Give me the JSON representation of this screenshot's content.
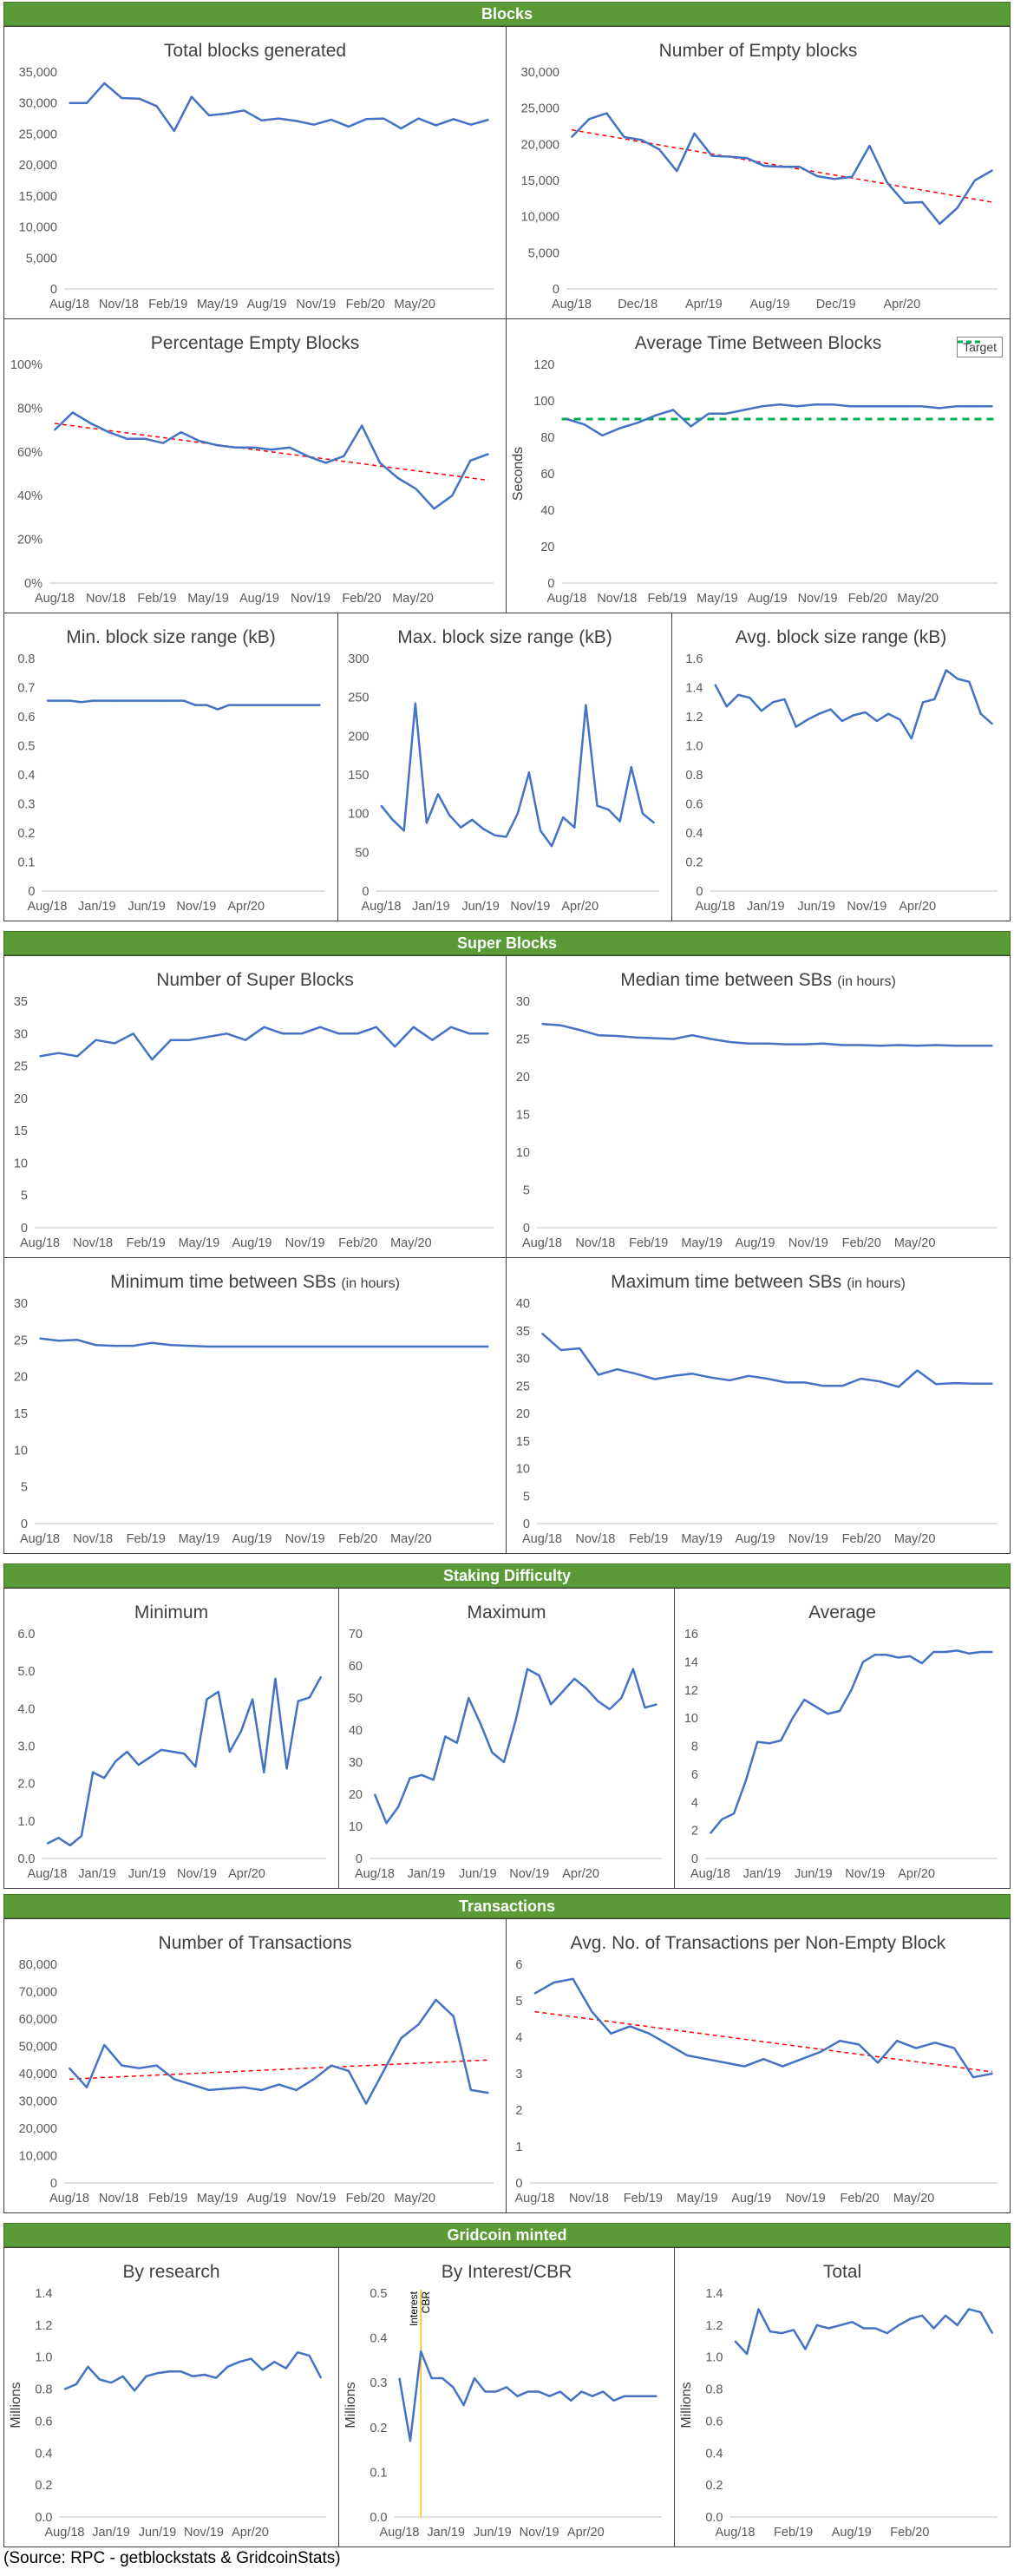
{
  "sections": {
    "blocks": "Blocks",
    "super_blocks": "Super Blocks",
    "staking": "Staking Difficulty",
    "transactions": "Transactions",
    "minted": "Gridcoin minted"
  },
  "source": "(Source: RPC - getblockstats & GridcoinStats)",
  "colors": {
    "line": "#4472c4",
    "trend": "#ff0000",
    "target": "#00b050",
    "marker": "#ffc000",
    "section": "#5b9b37"
  },
  "chart_data": [
    {
      "id": "total_blocks",
      "type": "line",
      "title": "Total blocks generated",
      "ylim": [
        0,
        35000
      ],
      "yticks": [
        "0",
        "5,000",
        "10,000",
        "15,000",
        "20,000",
        "25,000",
        "30,000",
        "35,000"
      ],
      "xticks": [
        "Aug/18",
        "Nov/18",
        "Feb/19",
        "May/19",
        "Aug/19",
        "Nov/19",
        "Feb/20",
        "May/20"
      ],
      "series": [
        {
          "name": "Total blocks",
          "values": [
            30000,
            30000,
            33200,
            30800,
            30700,
            29500,
            25500,
            31000,
            28000,
            28300,
            28800,
            27200,
            27500,
            27100,
            26500,
            27300,
            26200,
            27400,
            27500,
            25900,
            27500,
            26400,
            27400,
            26500,
            27300
          ]
        }
      ]
    },
    {
      "id": "empty_blocks",
      "type": "line",
      "title": "Number of Empty blocks",
      "ylim": [
        0,
        30000
      ],
      "yticks": [
        "0",
        "5,000",
        "10,000",
        "15,000",
        "20,000",
        "25,000",
        "30,000"
      ],
      "xticks": [
        "Aug/18",
        "Dec/18",
        "Apr/19",
        "Aug/19",
        "Dec/19",
        "Apr/20"
      ],
      "series": [
        {
          "name": "Empty blocks",
          "values": [
            21000,
            23500,
            24300,
            21000,
            20600,
            19300,
            16300,
            21500,
            18400,
            18300,
            18100,
            17000,
            16900,
            16900,
            15600,
            15200,
            15500,
            19800,
            14700,
            11900,
            12000,
            9000,
            11200,
            15000,
            16400
          ]
        }
      ],
      "trend": [
        22000,
        12000
      ]
    },
    {
      "id": "pct_empty",
      "type": "line",
      "title": "Percentage Empty Blocks",
      "ylim": [
        0,
        100
      ],
      "yticks": [
        "0%",
        "20%",
        "40%",
        "60%",
        "80%",
        "100%"
      ],
      "xticks": [
        "Aug/18",
        "Nov/18",
        "Feb/19",
        "May/19",
        "Aug/19",
        "Nov/19",
        "Feb/20",
        "May/20"
      ],
      "series": [
        {
          "name": "Percentage empty",
          "values": [
            70,
            78,
            73,
            69,
            66,
            66,
            64,
            69,
            65,
            63,
            62,
            62,
            61,
            62,
            58,
            55,
            58,
            72,
            55,
            48,
            43,
            34,
            40,
            56,
            59
          ]
        }
      ],
      "trend": [
        73,
        47
      ]
    },
    {
      "id": "avg_time",
      "type": "line",
      "title": "Average Time Between Blocks",
      "ylabel": "Seconds",
      "ylim": [
        0,
        120
      ],
      "yticks": [
        "0",
        "20",
        "40",
        "60",
        "80",
        "100",
        "120"
      ],
      "xticks": [
        "Aug/18",
        "Nov/18",
        "Feb/19",
        "May/19",
        "Aug/19",
        "Nov/19",
        "Feb/20",
        "May/20"
      ],
      "legend": "Target",
      "target": 90,
      "series": [
        {
          "name": "Average time",
          "values": [
            90,
            87,
            81,
            85,
            88,
            92,
            95,
            86,
            93,
            93,
            95,
            97,
            98,
            97,
            98,
            98,
            97,
            97,
            97,
            97,
            97,
            96,
            97,
            97,
            97
          ]
        }
      ]
    },
    {
      "id": "min_size",
      "type": "line",
      "title": "Min. block size range (kB)",
      "ylim": [
        0,
        0.8
      ],
      "yticks": [
        "0",
        "0.1",
        "0.2",
        "0.3",
        "0.4",
        "0.5",
        "0.6",
        "0.7",
        "0.8"
      ],
      "xticks": [
        "Aug/18",
        "Jan/19",
        "Jun/19",
        "Nov/19",
        "Apr/20"
      ],
      "series": [
        {
          "name": "Min size",
          "values": [
            0.655,
            0.655,
            0.655,
            0.65,
            0.655,
            0.655,
            0.655,
            0.655,
            0.655,
            0.655,
            0.655,
            0.655,
            0.655,
            0.64,
            0.64,
            0.625,
            0.64,
            0.64,
            0.64,
            0.64,
            0.64,
            0.64,
            0.64,
            0.64,
            0.64
          ]
        }
      ]
    },
    {
      "id": "max_size",
      "type": "line",
      "title": "Max. block size range (kB)",
      "ylim": [
        0,
        300
      ],
      "yticks": [
        "0",
        "50",
        "100",
        "150",
        "200",
        "250",
        "300"
      ],
      "xticks": [
        "Aug/18",
        "Jan/19",
        "Jun/19",
        "Nov/19",
        "Apr/20"
      ],
      "series": [
        {
          "name": "Max size",
          "values": [
            110,
            92,
            78,
            242,
            88,
            125,
            98,
            82,
            92,
            80,
            72,
            70,
            100,
            153,
            78,
            58,
            95,
            82,
            240,
            110,
            105,
            90,
            160,
            100,
            88
          ]
        }
      ]
    },
    {
      "id": "avg_size",
      "type": "line",
      "title": "Avg. block size range (kB)",
      "ylim": [
        0,
        1.6
      ],
      "yticks": [
        "0",
        "0.2",
        "0.4",
        "0.6",
        "0.8",
        "1.0",
        "1.2",
        "1.4",
        "1.6"
      ],
      "xticks": [
        "Aug/18",
        "Jan/19",
        "Jun/19",
        "Nov/19",
        "Apr/20"
      ],
      "series": [
        {
          "name": "Avg size",
          "values": [
            1.42,
            1.27,
            1.35,
            1.33,
            1.24,
            1.3,
            1.32,
            1.13,
            1.18,
            1.22,
            1.25,
            1.17,
            1.21,
            1.23,
            1.17,
            1.22,
            1.18,
            1.05,
            1.3,
            1.32,
            1.52,
            1.46,
            1.44,
            1.22,
            1.15
          ]
        }
      ]
    },
    {
      "id": "super_blocks",
      "type": "line",
      "title": "Number of Super Blocks",
      "ylim": [
        0,
        35
      ],
      "yticks": [
        "0",
        "5",
        "10",
        "15",
        "20",
        "25",
        "30",
        "35"
      ],
      "xticks": [
        "Aug/18",
        "Nov/18",
        "Feb/19",
        "May/19",
        "Aug/19",
        "Nov/19",
        "Feb/20",
        "May/20"
      ],
      "series": [
        {
          "name": "Super blocks",
          "values": [
            26.5,
            27,
            26.5,
            29,
            28.5,
            30,
            26,
            29,
            29,
            29.5,
            30,
            29,
            31,
            30,
            30,
            31,
            30,
            30,
            31,
            28,
            31,
            29,
            31,
            30,
            30
          ]
        }
      ]
    },
    {
      "id": "median_sb",
      "type": "line",
      "title": "Median time between SBs",
      "title_small": "(in hours)",
      "ylim": [
        0,
        30
      ],
      "yticks": [
        "0",
        "5",
        "10",
        "15",
        "20",
        "25",
        "30"
      ],
      "xticks": [
        "Aug/18",
        "Nov/18",
        "Feb/19",
        "May/19",
        "Aug/19",
        "Nov/19",
        "Feb/20",
        "May/20"
      ],
      "series": [
        {
          "name": "Median time",
          "values": [
            27,
            26.8,
            26.2,
            25.5,
            25.4,
            25.2,
            25.1,
            25,
            25.5,
            25,
            24.6,
            24.4,
            24.4,
            24.3,
            24.3,
            24.4,
            24.2,
            24.2,
            24.1,
            24.2,
            24.1,
            24.2,
            24.1,
            24.1,
            24.1
          ]
        }
      ]
    },
    {
      "id": "min_sb",
      "type": "line",
      "title": "Minimum time between SBs",
      "title_small": "(in hours)",
      "ylim": [
        0,
        30
      ],
      "yticks": [
        "0",
        "5",
        "10",
        "15",
        "20",
        "25",
        "30"
      ],
      "xticks": [
        "Aug/18",
        "Nov/18",
        "Feb/19",
        "May/19",
        "Aug/19",
        "Nov/19",
        "Feb/20",
        "May/20"
      ],
      "series": [
        {
          "name": "Minimum time",
          "values": [
            25.2,
            24.9,
            25,
            24.3,
            24.2,
            24.2,
            24.6,
            24.3,
            24.2,
            24.1,
            24.1,
            24.1,
            24.1,
            24.1,
            24.1,
            24.1,
            24.1,
            24.1,
            24.1,
            24.1,
            24.1,
            24.1,
            24.1,
            24.1,
            24.1
          ]
        }
      ]
    },
    {
      "id": "max_sb",
      "type": "line",
      "title": "Maximum time  between SBs",
      "title_small": "(in hours)",
      "ylim": [
        0,
        40
      ],
      "yticks": [
        "0",
        "5",
        "10",
        "15",
        "20",
        "25",
        "30",
        "35",
        "40"
      ],
      "xticks": [
        "Aug/18",
        "Nov/18",
        "Feb/19",
        "May/19",
        "Aug/19",
        "Nov/19",
        "Feb/20",
        "May/20"
      ],
      "series": [
        {
          "name": "Maximum time",
          "values": [
            34.5,
            31.5,
            31.8,
            27,
            28,
            27.2,
            26.2,
            26.8,
            27.2,
            26.5,
            26,
            26.8,
            26.3,
            25.6,
            25.6,
            25,
            25,
            26.3,
            25.8,
            24.8,
            27.8,
            25.3,
            25.5,
            25.4,
            25.4
          ]
        }
      ]
    },
    {
      "id": "diff_min",
      "type": "line",
      "title": "Minimum",
      "ylim": [
        0,
        6
      ],
      "yticks": [
        "0.0",
        "1.0",
        "2.0",
        "3.0",
        "4.0",
        "5.0",
        "6.0"
      ],
      "xticks": [
        "Aug/18",
        "Jan/19",
        "Jun/19",
        "Nov/19",
        "Apr/20"
      ],
      "series": [
        {
          "name": "Minimum difficulty",
          "values": [
            0.4,
            0.55,
            0.35,
            0.6,
            2.3,
            2.15,
            2.6,
            2.85,
            2.5,
            2.7,
            2.9,
            2.85,
            2.8,
            2.45,
            4.25,
            4.45,
            2.85,
            3.4,
            4.25,
            2.3,
            4.8,
            2.4,
            4.2,
            4.3,
            4.85
          ]
        }
      ]
    },
    {
      "id": "diff_max",
      "type": "line",
      "title": "Maximum",
      "ylim": [
        0,
        70
      ],
      "yticks": [
        "0",
        "10",
        "20",
        "30",
        "40",
        "50",
        "60",
        "70"
      ],
      "xticks": [
        "Aug/18",
        "Jan/19",
        "Jun/19",
        "Nov/19",
        "Apr/20"
      ],
      "series": [
        {
          "name": "Maximum difficulty",
          "values": [
            20,
            11,
            16,
            25,
            26,
            24.5,
            38,
            36,
            50,
            42,
            33,
            30,
            43,
            59,
            57,
            48,
            52,
            56,
            53,
            49,
            46.5,
            50,
            59,
            47,
            48
          ]
        }
      ]
    },
    {
      "id": "diff_avg",
      "type": "line",
      "title": "Average",
      "ylim": [
        0,
        16
      ],
      "yticks": [
        "0",
        "2",
        "4",
        "6",
        "8",
        "10",
        "12",
        "14",
        "16"
      ],
      "xticks": [
        "Aug/18",
        "Jan/19",
        "Jun/19",
        "Nov/19",
        "Apr/20"
      ],
      "series": [
        {
          "name": "Average difficulty",
          "values": [
            1.8,
            2.8,
            3.2,
            5.5,
            8.3,
            8.2,
            8.4,
            10,
            11.3,
            10.8,
            10.3,
            10.5,
            12,
            14,
            14.5,
            14.5,
            14.3,
            14.4,
            13.9,
            14.7,
            14.7,
            14.8,
            14.6,
            14.7,
            14.7
          ]
        }
      ]
    },
    {
      "id": "num_tx",
      "type": "line",
      "title": "Number of Transactions",
      "ylim": [
        0,
        80000
      ],
      "yticks": [
        "0",
        "10,000",
        "20,000",
        "30,000",
        "40,000",
        "50,000",
        "60,000",
        "70,000",
        "80,000"
      ],
      "xticks": [
        "Aug/18",
        "Nov/18",
        "Feb/19",
        "May/19",
        "Aug/19",
        "Nov/19",
        "Feb/20",
        "May/20"
      ],
      "series": [
        {
          "name": "Transactions",
          "values": [
            42000,
            35000,
            50500,
            43000,
            42000,
            43000,
            38000,
            36000,
            34000,
            34500,
            35000,
            34000,
            36000,
            34000,
            38000,
            43000,
            41000,
            29000,
            41000,
            53000,
            58000,
            67000,
            61000,
            34000,
            33000
          ]
        }
      ],
      "trend": [
        38000,
        45000
      ]
    },
    {
      "id": "tx_per_block",
      "type": "line",
      "title": "Avg. No. of Transactions per Non-Empty Block",
      "ylim": [
        0,
        6
      ],
      "yticks": [
        "0",
        "1",
        "2",
        "3",
        "4",
        "5",
        "6"
      ],
      "xticks": [
        "Aug/18",
        "Nov/18",
        "Feb/19",
        "May/19",
        "Aug/19",
        "Nov/19",
        "Feb/20",
        "May/20"
      ],
      "series": [
        {
          "name": "Tx per block",
          "values": [
            5.2,
            5.5,
            5.6,
            4.7,
            4.1,
            4.3,
            4.1,
            3.8,
            3.5,
            3.4,
            3.3,
            3.2,
            3.4,
            3.2,
            3.4,
            3.6,
            3.9,
            3.8,
            3.3,
            3.9,
            3.7,
            3.85,
            3.7,
            2.9,
            3
          ]
        }
      ],
      "trend": [
        4.7,
        3.05
      ]
    },
    {
      "id": "by_research",
      "type": "line",
      "title": "By research",
      "ylabel": "Millions",
      "ylim": [
        0,
        1.4
      ],
      "yticks": [
        "0.0",
        "0.2",
        "0.4",
        "0.6",
        "0.8",
        "1.0",
        "1.2",
        "1.4"
      ],
      "xticks": [
        "Aug/18",
        "Jan/19",
        "Jun/19",
        "Nov/19",
        "Apr/20"
      ],
      "series": [
        {
          "name": "Research",
          "values": [
            0.8,
            0.83,
            0.94,
            0.86,
            0.84,
            0.88,
            0.79,
            0.88,
            0.9,
            0.91,
            0.91,
            0.88,
            0.89,
            0.87,
            0.94,
            0.97,
            0.99,
            0.92,
            0.97,
            0.93,
            1.03,
            1.01,
            0.87
          ]
        }
      ]
    },
    {
      "id": "by_interest",
      "type": "line",
      "title": "By Interest/CBR",
      "ylabel": "Millions",
      "ylim": [
        0,
        0.5
      ],
      "yticks": [
        "0.0",
        "0.1",
        "0.2",
        "0.3",
        "0.4",
        "0.5"
      ],
      "xticks": [
        "Aug/18",
        "Jan/19",
        "Jun/19",
        "Nov/19",
        "Apr/20"
      ],
      "marker_label": "Interest CBR",
      "marker_index": 2,
      "series": [
        {
          "name": "Interest",
          "values": [
            0.31,
            0.17,
            0.37,
            0.31,
            0.31,
            0.29,
            0.25,
            0.31,
            0.28,
            0.28,
            0.29,
            0.27,
            0.28,
            0.28,
            0.27,
            0.28,
            0.26,
            0.28,
            0.27,
            0.28,
            0.26,
            0.27,
            0.27,
            0.27,
            0.27
          ]
        }
      ]
    },
    {
      "id": "total_minted",
      "type": "line",
      "title": "Total",
      "ylabel": "Millions",
      "ylim": [
        0,
        1.4
      ],
      "yticks": [
        "0.0",
        "0.2",
        "0.4",
        "0.6",
        "0.8",
        "1.0",
        "1.2",
        "1.4"
      ],
      "xticks": [
        "Aug/18",
        "Feb/19",
        "Aug/19",
        "Feb/20"
      ],
      "series": [
        {
          "name": "Total",
          "values": [
            1.1,
            1.02,
            1.3,
            1.16,
            1.15,
            1.17,
            1.05,
            1.2,
            1.18,
            1.2,
            1.22,
            1.18,
            1.18,
            1.15,
            1.2,
            1.24,
            1.26,
            1.18,
            1.26,
            1.2,
            1.3,
            1.28,
            1.15
          ]
        }
      ]
    }
  ]
}
